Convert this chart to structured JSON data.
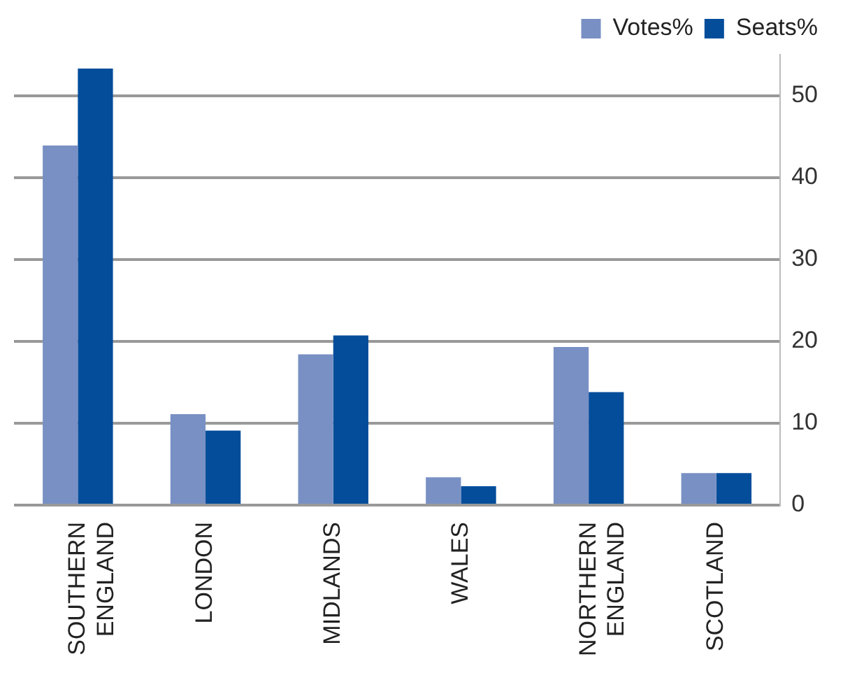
{
  "chart_data": {
    "type": "bar",
    "categories": [
      "SOUTHERN ENGLAND",
      "LONDON",
      "MIDLANDS",
      "WALES",
      "NORTHERN ENGLAND",
      "SCOTLAND"
    ],
    "series": [
      {
        "name": "Votes%",
        "color": "#7890c4",
        "values": [
          43.9,
          11.1,
          18.4,
          3.4,
          19.3,
          3.9
        ]
      },
      {
        "name": "Seats%",
        "color": "#034d9b",
        "values": [
          53.3,
          9.1,
          20.7,
          2.3,
          13.8,
          3.9
        ]
      }
    ],
    "ylim": [
      0,
      55
    ],
    "yticks": [
      0,
      10,
      20,
      30,
      40,
      50
    ],
    "grid": "y",
    "legend": "top right"
  }
}
